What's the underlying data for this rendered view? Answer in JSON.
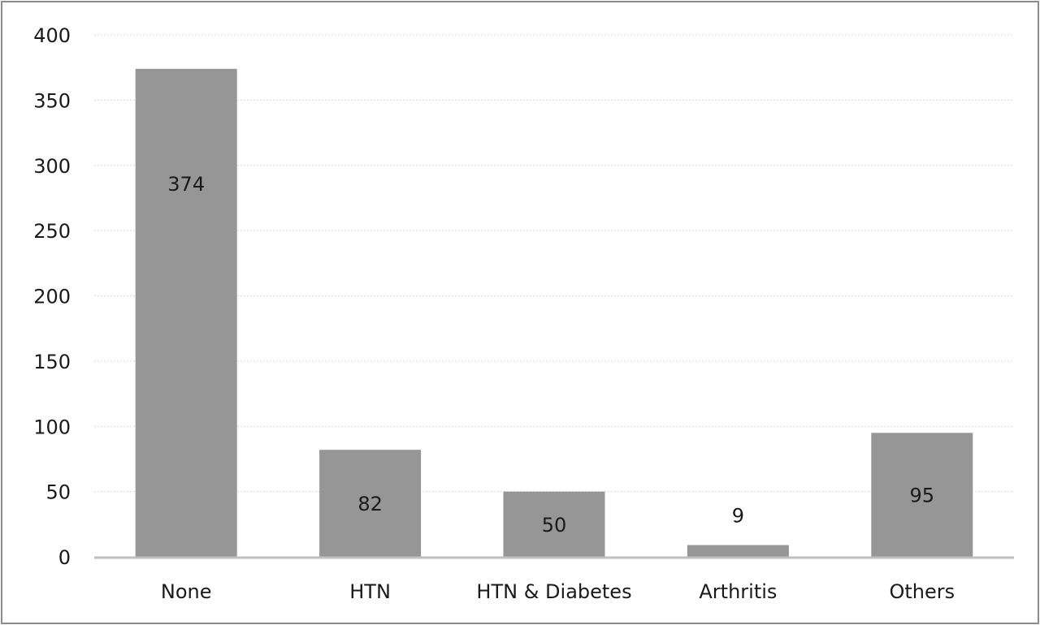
{
  "chart_data": {
    "type": "bar",
    "categories": [
      "None",
      "HTN",
      "HTN & Diabetes",
      "Arthritis",
      "Others"
    ],
    "values": [
      374,
      82,
      50,
      9,
      95
    ],
    "data_labels": [
      "374",
      "82",
      "50",
      "9",
      "95"
    ],
    "ylim": [
      0,
      400
    ],
    "yticks": [
      0,
      50,
      100,
      150,
      200,
      250,
      300,
      350,
      400
    ],
    "ytick_labels": [
      "0",
      "50",
      "100",
      "150",
      "200",
      "250",
      "300",
      "350",
      "400"
    ],
    "grid": true,
    "legend": "none",
    "colors": {
      "bar": "#969696",
      "grid": "#d9d9d9",
      "axis": "#bfbfbf",
      "text": "#1a1a1a"
    }
  }
}
